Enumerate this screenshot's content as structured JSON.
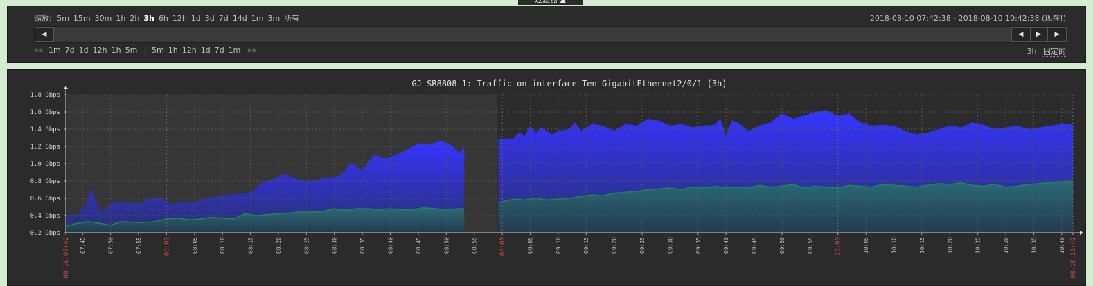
{
  "filter_tab": "过滤器 ▲",
  "zoom": {
    "label": "缩放:",
    "options": [
      "5m",
      "15m",
      "30m",
      "1h",
      "2h",
      "3h",
      "6h",
      "12h",
      "1d",
      "3d",
      "7d",
      "14d",
      "1m",
      "3m",
      "所有"
    ],
    "active": "3h"
  },
  "period": {
    "from": "2018-08-10 07:42:38",
    "dash": " - ",
    "to": "2018-08-10 10:42:38 (现在!)"
  },
  "scrollbar": {
    "left_icon": "◀",
    "prev_icon": "◀",
    "next_icon": "▶",
    "right_icon": "▶"
  },
  "nav": {
    "back_prefix": "««",
    "back": [
      "1m",
      "7d",
      "1d",
      "12h",
      "1h",
      "5m"
    ],
    "divider": "|",
    "fwd": [
      "5m",
      "1h",
      "12h",
      "1d",
      "7d",
      "1m"
    ],
    "fwd_suffix": "»»"
  },
  "fixed": {
    "period": "3h",
    "fixed_label": "固定的"
  },
  "chart_data": {
    "type": "area",
    "title": "GJ_SR8808_1: Traffic on interface Ten-GigabitEthernet2/0/1 (3h)",
    "y_unit": "Gbps",
    "ylim": [
      0.2,
      1.8
    ],
    "y_ticks": [
      "0.2 Gbps",
      "0.4 Gbps",
      "0.6 Gbps",
      "0.8 Gbps",
      "1.0 Gbps",
      "1.2 Gbps",
      "1.4 Gbps",
      "1.6 Gbps",
      "1.8 Gbps"
    ],
    "x_ticks": [
      {
        "label": "08-10 07:42",
        "red": true,
        "t": 0
      },
      {
        "label": "07:45",
        "t": 3
      },
      {
        "label": "07:50",
        "t": 8
      },
      {
        "label": "07:55",
        "t": 13
      },
      {
        "label": "08:00",
        "red": true,
        "t": 18
      },
      {
        "label": "08:05",
        "t": 23
      },
      {
        "label": "08:10",
        "t": 28
      },
      {
        "label": "08:15",
        "t": 33
      },
      {
        "label": "08:20",
        "t": 38
      },
      {
        "label": "08:25",
        "t": 43
      },
      {
        "label": "08:30",
        "t": 48
      },
      {
        "label": "08:35",
        "t": 53
      },
      {
        "label": "08:40",
        "t": 58
      },
      {
        "label": "08:45",
        "t": 63
      },
      {
        "label": "08:50",
        "t": 68
      },
      {
        "label": "08:55",
        "t": 73
      },
      {
        "label": "09:00",
        "red": true,
        "t": 78
      },
      {
        "label": "09:05",
        "t": 83
      },
      {
        "label": "09:10",
        "t": 88
      },
      {
        "label": "09:15",
        "t": 93
      },
      {
        "label": "09:20",
        "t": 98
      },
      {
        "label": "09:25",
        "t": 103
      },
      {
        "label": "09:30",
        "t": 108
      },
      {
        "label": "09:35",
        "t": 113
      },
      {
        "label": "09:40",
        "t": 118
      },
      {
        "label": "09:45",
        "t": 123
      },
      {
        "label": "09:50",
        "t": 128
      },
      {
        "label": "09:55",
        "t": 133
      },
      {
        "label": "10:00",
        "red": true,
        "t": 138
      },
      {
        "label": "10:05",
        "t": 143
      },
      {
        "label": "10:10",
        "t": 148
      },
      {
        "label": "10:15",
        "t": 153
      },
      {
        "label": "10:20",
        "t": 158
      },
      {
        "label": "10:25",
        "t": 163
      },
      {
        "label": "10:30",
        "t": 168
      },
      {
        "label": "10:35",
        "t": 173
      },
      {
        "label": "10:40",
        "t": 178
      },
      {
        "label": "08-10 10:42",
        "red": true,
        "t": 180
      }
    ],
    "t_range": [
      0,
      180
    ],
    "gap": [
      71.3,
      77.2
    ],
    "dark_until": 77.2,
    "grid": true,
    "series": [
      {
        "role": "in",
        "color": "#3434ff",
        "t": [
          0,
          2,
          3.5,
          4.5,
          5.5,
          6.5,
          7.5,
          9,
          11,
          13,
          15,
          17,
          19,
          21,
          23,
          25,
          27,
          29,
          31,
          33,
          35,
          37,
          39,
          41,
          43,
          45,
          47,
          49,
          51,
          53,
          55,
          57,
          59,
          61,
          63,
          65,
          67,
          69,
          70.5,
          71.2,
          77.3,
          80,
          81,
          82,
          83,
          84,
          85,
          87,
          88,
          90,
          91,
          92,
          94,
          96,
          98,
          100,
          102,
          104,
          106,
          108,
          110,
          112,
          114,
          116,
          117,
          118,
          119,
          120,
          122,
          124,
          126,
          128,
          130,
          132,
          134,
          136,
          138,
          140,
          142,
          144,
          146,
          148,
          150,
          152,
          154,
          156,
          158,
          160,
          162,
          164,
          166,
          168,
          170,
          172,
          174,
          176,
          178,
          180
        ],
        "v": [
          0.41,
          0.41,
          0.52,
          0.72,
          0.55,
          0.43,
          0.52,
          0.56,
          0.55,
          0.54,
          0.6,
          0.6,
          0.53,
          0.56,
          0.55,
          0.6,
          0.62,
          0.64,
          0.65,
          0.66,
          0.78,
          0.82,
          0.88,
          0.83,
          0.8,
          0.82,
          0.84,
          0.86,
          1.01,
          0.92,
          1.1,
          1.06,
          1.1,
          1.16,
          1.24,
          1.22,
          1.27,
          1.21,
          1.12,
          1.21,
          1.29,
          1.29,
          1.37,
          1.32,
          1.44,
          1.36,
          1.42,
          1.34,
          1.38,
          1.4,
          1.48,
          1.38,
          1.46,
          1.44,
          1.38,
          1.46,
          1.44,
          1.52,
          1.5,
          1.44,
          1.46,
          1.42,
          1.44,
          1.45,
          1.52,
          1.32,
          1.5,
          1.48,
          1.38,
          1.44,
          1.48,
          1.58,
          1.52,
          1.56,
          1.6,
          1.62,
          1.55,
          1.58,
          1.48,
          1.44,
          1.45,
          1.44,
          1.38,
          1.34,
          1.36,
          1.4,
          1.44,
          1.42,
          1.48,
          1.45,
          1.4,
          1.42,
          1.44,
          1.4,
          1.42,
          1.44,
          1.46,
          1.45
        ]
      },
      {
        "role": "out",
        "color": "#1e8a4a",
        "t": [
          0,
          2,
          4,
          6,
          8,
          10,
          12,
          14,
          16,
          18,
          20,
          22,
          24,
          26,
          28,
          30,
          32,
          34,
          36,
          38,
          40,
          42,
          44,
          46,
          48,
          50,
          52,
          54,
          56,
          58,
          60,
          62,
          64,
          66,
          68,
          70,
          71.2,
          77.3,
          80,
          82,
          84,
          86,
          88,
          90,
          92,
          94,
          96,
          98,
          100,
          102,
          104,
          106,
          108,
          110,
          112,
          114,
          116,
          118,
          120,
          122,
          124,
          126,
          128,
          130,
          132,
          134,
          136,
          138,
          140,
          142,
          144,
          146,
          148,
          150,
          152,
          154,
          156,
          158,
          160,
          162,
          164,
          166,
          168,
          170,
          172,
          174,
          176,
          178,
          180
        ],
        "v": [
          0.28,
          0.31,
          0.33,
          0.31,
          0.29,
          0.33,
          0.32,
          0.32,
          0.33,
          0.36,
          0.37,
          0.35,
          0.36,
          0.38,
          0.37,
          0.36,
          0.42,
          0.4,
          0.41,
          0.42,
          0.43,
          0.44,
          0.44,
          0.45,
          0.48,
          0.46,
          0.48,
          0.48,
          0.47,
          0.48,
          0.47,
          0.47,
          0.49,
          0.48,
          0.47,
          0.48,
          0.48,
          0.55,
          0.59,
          0.58,
          0.6,
          0.58,
          0.59,
          0.6,
          0.62,
          0.64,
          0.63,
          0.66,
          0.67,
          0.68,
          0.7,
          0.71,
          0.72,
          0.7,
          0.73,
          0.72,
          0.74,
          0.72,
          0.73,
          0.72,
          0.75,
          0.73,
          0.74,
          0.76,
          0.72,
          0.74,
          0.73,
          0.72,
          0.75,
          0.74,
          0.73,
          0.76,
          0.75,
          0.74,
          0.73,
          0.75,
          0.77,
          0.76,
          0.78,
          0.75,
          0.74,
          0.76,
          0.73,
          0.74,
          0.76,
          0.77,
          0.78,
          0.79,
          0.8
        ]
      }
    ]
  }
}
